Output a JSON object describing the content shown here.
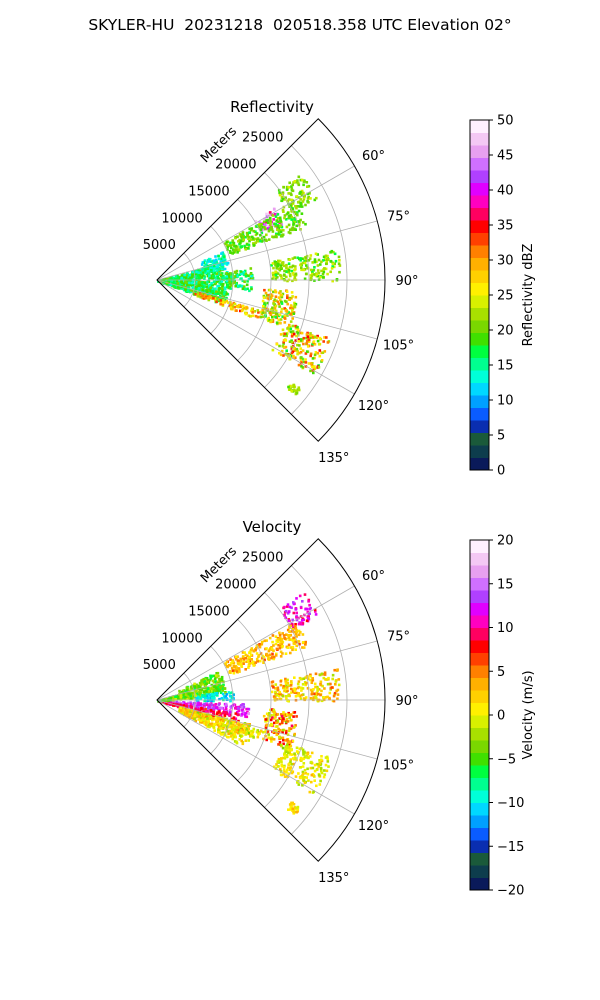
{
  "figure_title": "SKYLER-HU  20231218  020518.358 UTC Elevation 02°",
  "chart_data": [
    {
      "type": "heatmap",
      "title": "Reflectivity",
      "range_axis_label": "Meters",
      "range_tick_labels": [
        "5000",
        "10000",
        "15000",
        "20000",
        "25000"
      ],
      "range_ticks": [
        5000,
        10000,
        15000,
        20000,
        25000
      ],
      "range_max": 30000,
      "azimuth_range_deg": [
        45,
        135
      ],
      "azimuth_tick_labels": [
        "60°",
        "75°",
        "90°",
        "105°",
        "120°",
        "135°"
      ],
      "azimuth_ticks": [
        60,
        75,
        90,
        105,
        120,
        135
      ],
      "grid": true,
      "colorbar_label": "Reflectivity dBZ",
      "colorbar_range": [
        0,
        50
      ],
      "colorbar_tick_labels": [
        "0",
        "5",
        "10",
        "15",
        "20",
        "25",
        "30",
        "35",
        "40",
        "45",
        "50"
      ],
      "colorbar_ticks": [
        0,
        5,
        10,
        15,
        20,
        25,
        30,
        35,
        40,
        45,
        50
      ],
      "colormap": [
        "#0a1a5a",
        "#0d3d4d",
        "#1a5a3a",
        "#0a2eb0",
        "#0a5cff",
        "#00a0ff",
        "#00d8ff",
        "#00ffd8",
        "#00ff90",
        "#00ff40",
        "#40e000",
        "#7ad800",
        "#a8e000",
        "#d8f000",
        "#fff000",
        "#ffd000",
        "#ffb000",
        "#ff8000",
        "#ff4000",
        "#ff0000",
        "#ff0060",
        "#ff00c0",
        "#e000ff",
        "#b040ff",
        "#d070ff",
        "#e8a0f0",
        "#f4c8f4",
        "#fff0ff"
      ],
      "echoes": [
        {
          "az": [
            74,
            110
          ],
          "r": [
            0,
            9000
          ],
          "value": 17,
          "spread": 4
        },
        {
          "az": [
            66,
            80
          ],
          "r": [
            6000,
            9500
          ],
          "value": 14,
          "spread": 3
        },
        {
          "az": [
            82,
            96
          ],
          "r": [
            9000,
            12500
          ],
          "value": 17,
          "spread": 4
        },
        {
          "az": [
            100,
            108
          ],
          "r": [
            6000,
            9500
          ],
          "value": 18,
          "spread": 3
        },
        {
          "az": [
            106,
            111
          ],
          "r": [
            5000,
            14000
          ],
          "value": 28,
          "spread": 6
        },
        {
          "az": [
            53,
            63
          ],
          "r": [
            19000,
            23500
          ],
          "value": 21,
          "spread": 3
        },
        {
          "az": [
            94,
            110
          ],
          "r": [
            14000,
            18500
          ],
          "value": 25,
          "spread": 8
        },
        {
          "az": [
            108,
            121
          ],
          "r": [
            17500,
            24000
          ],
          "value": 26,
          "spread": 9
        },
        {
          "az": [
            127,
            130
          ],
          "r": [
            22000,
            23500
          ],
          "value": 22,
          "spread": 3
        },
        {
          "az": [
            80,
            90
          ],
          "r": [
            15000,
            24000
          ],
          "value": 21,
          "spread": 4
        },
        {
          "az": [
            58,
            66
          ],
          "r": [
            15000,
            18000
          ],
          "value": 42,
          "spread": 6
        },
        {
          "az": [
            60,
            70
          ],
          "r": [
            10000,
            21000
          ],
          "value": 20,
          "spread": 3
        }
      ]
    },
    {
      "type": "heatmap",
      "title": "Velocity",
      "range_axis_label": "Meters",
      "range_tick_labels": [
        "5000",
        "10000",
        "15000",
        "20000",
        "25000"
      ],
      "range_ticks": [
        5000,
        10000,
        15000,
        20000,
        25000
      ],
      "range_max": 30000,
      "azimuth_range_deg": [
        45,
        135
      ],
      "azimuth_tick_labels": [
        "60°",
        "75°",
        "90°",
        "105°",
        "120°",
        "135°"
      ],
      "azimuth_ticks": [
        60,
        75,
        90,
        105,
        120,
        135
      ],
      "grid": true,
      "colorbar_label": "Velocity (m/s)",
      "colorbar_range": [
        -20,
        20
      ],
      "colorbar_tick_labels": [
        "−20",
        "−15",
        "−10",
        "−5",
        "0",
        "5",
        "10",
        "15",
        "20"
      ],
      "colorbar_ticks": [
        -20,
        -15,
        -10,
        -5,
        0,
        5,
        10,
        15,
        20
      ],
      "colormap": [
        "#0a1a5a",
        "#0d3d4d",
        "#1a5a3a",
        "#0a2eb0",
        "#0a5cff",
        "#00a0ff",
        "#00d8ff",
        "#00ffd8",
        "#00ff90",
        "#00ff40",
        "#40e000",
        "#7ad800",
        "#a8e000",
        "#d8f000",
        "#fff000",
        "#ffd000",
        "#ffb000",
        "#ff8000",
        "#ff4000",
        "#ff0000",
        "#ff0060",
        "#ff00c0",
        "#e000ff",
        "#b040ff",
        "#d070ff",
        "#e8a0f0",
        "#f4c8f4",
        "#fff0ff"
      ],
      "echoes": [
        {
          "az": [
            64,
            84
          ],
          "r": [
            3000,
            9000
          ],
          "value": -4,
          "spread": 3
        },
        {
          "az": [
            82,
            90
          ],
          "r": [
            5000,
            10000
          ],
          "value": -10,
          "spread": 2
        },
        {
          "az": [
            92,
            100
          ],
          "r": [
            0,
            12000
          ],
          "value": 13,
          "spread": 3
        },
        {
          "az": [
            99,
            106
          ],
          "r": [
            0,
            11000
          ],
          "value": 9,
          "spread": 2
        },
        {
          "az": [
            104,
            118
          ],
          "r": [
            3000,
            13000
          ],
          "value": 1,
          "spread": 3
        },
        {
          "az": [
            106,
            111
          ],
          "r": [
            5000,
            14000
          ],
          "value": 1,
          "spread": 4
        },
        {
          "az": [
            72,
            86
          ],
          "r": [
            0,
            4500
          ],
          "value": -4,
          "spread": 3
        },
        {
          "az": [
            53,
            62
          ],
          "r": [
            20000,
            24000
          ],
          "value": 11,
          "spread": 3
        },
        {
          "az": [
            94,
            110
          ],
          "r": [
            14000,
            18500
          ],
          "value": 3,
          "spread": 6
        },
        {
          "az": [
            108,
            121
          ],
          "r": [
            17500,
            24000
          ],
          "value": 0,
          "spread": 3
        },
        {
          "az": [
            127,
            130
          ],
          "r": [
            22000,
            23500
          ],
          "value": 1,
          "spread": 2
        },
        {
          "az": [
            80,
            90
          ],
          "r": [
            15000,
            24000
          ],
          "value": 2,
          "spread": 4
        },
        {
          "az": [
            60,
            70
          ],
          "r": [
            10000,
            21000
          ],
          "value": 3,
          "spread": 3
        }
      ]
    }
  ]
}
